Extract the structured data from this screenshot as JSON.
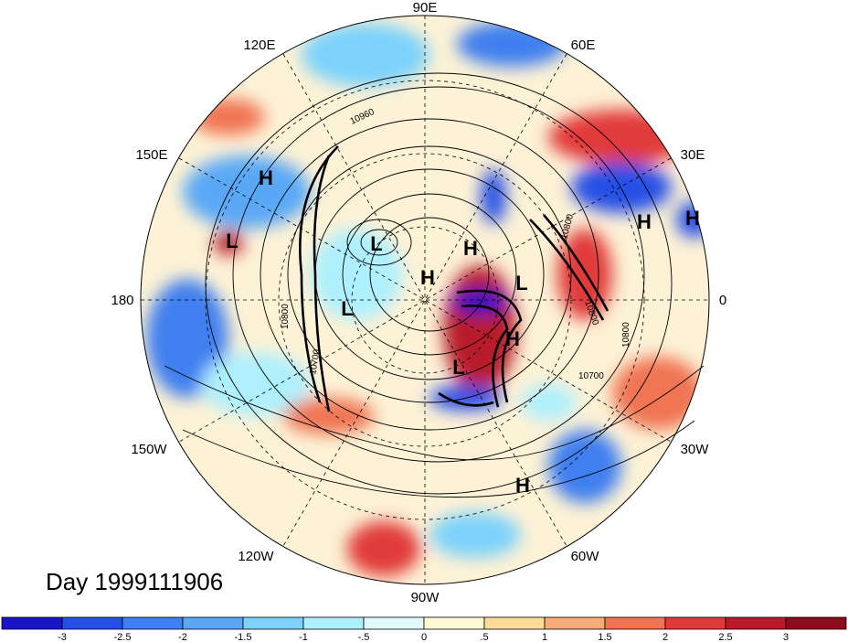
{
  "map": {
    "projection": "polar stereographic (north pole)",
    "longitude_labels": [
      "90E",
      "60E",
      "30E",
      "0",
      "30W",
      "60W",
      "90W",
      "120W",
      "150W",
      "180",
      "150E",
      "120E"
    ],
    "pressure_systems": [
      "H",
      "H",
      "L",
      "L",
      "H",
      "H",
      "L",
      "L",
      "H",
      "L",
      "H",
      "H",
      "H"
    ],
    "contour_labels": [
      "10960",
      "10800",
      "10800",
      "10800",
      "10700",
      "10700",
      "10800"
    ],
    "date_label": "Day 1999111906"
  },
  "colorbar": {
    "tick_labels": [
      "-3",
      "-2.5",
      "-2",
      "-1.5",
      "-1",
      "-.5",
      "0",
      ".5",
      "1",
      "1.5",
      "2",
      "2.5",
      "3"
    ],
    "colors": [
      "#1a16c8",
      "#2550e6",
      "#3f7fef",
      "#5aa8f5",
      "#7cd2fb",
      "#aef0fd",
      "#e1fbfd",
      "#fff8d4",
      "#fddc9a",
      "#f6ab78",
      "#ef7452",
      "#e13a3a",
      "#b81a2a",
      "#8c0d1d"
    ]
  }
}
